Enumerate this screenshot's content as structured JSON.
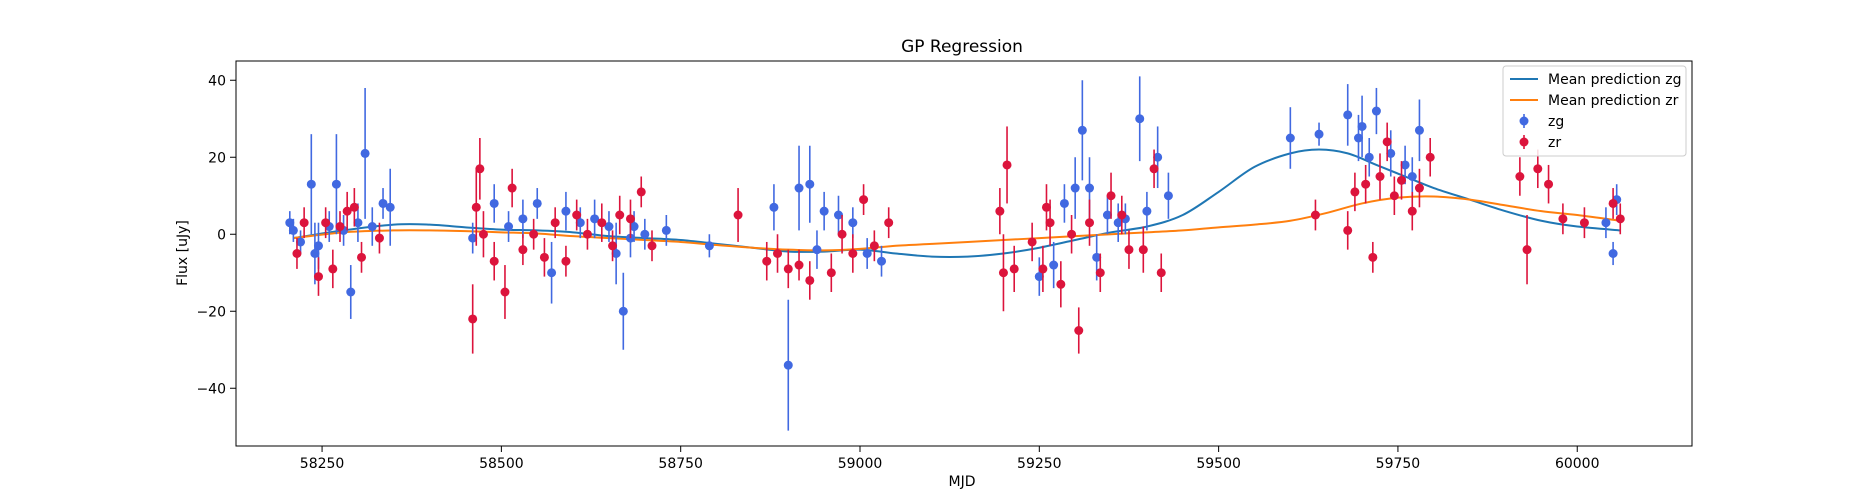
{
  "chart_data": {
    "type": "scatter",
    "title": "GP Regression",
    "xlabel": "MJD",
    "ylabel": "Flux [uJy]",
    "xlim": [
      58130,
      60160
    ],
    "ylim": [
      -55,
      45
    ],
    "xticks": [
      58250,
      58500,
      58750,
      59000,
      59250,
      59500,
      59750,
      60000
    ],
    "yticks": [
      -40,
      -20,
      0,
      20,
      40
    ],
    "grid": false,
    "legend_position": "top-right",
    "legend": [
      {
        "label": "Mean prediction zg",
        "kind": "line",
        "color": "#1f77b4"
      },
      {
        "label": "Mean prediction zr",
        "kind": "line",
        "color": "#ff7f0e"
      },
      {
        "label": "zg",
        "kind": "errorbar",
        "color": "#4169e1"
      },
      {
        "label": "zr",
        "kind": "errorbar",
        "color": "#dc143c"
      }
    ],
    "lines": [
      {
        "name": "Mean prediction zg",
        "color": "#1f77b4",
        "x": [
          58210,
          58280,
          58350,
          58400,
          58450,
          58500,
          58550,
          58600,
          58650,
          58700,
          58750,
          58800,
          58850,
          58900,
          58950,
          59000,
          59050,
          59100,
          59150,
          59200,
          59250,
          59300,
          59350,
          59400,
          59450,
          59500,
          59550,
          59600,
          59640,
          59680,
          59720,
          59760,
          59800,
          59850,
          59900,
          59950,
          60000,
          60060
        ],
        "y": [
          -1,
          1,
          2.5,
          2.5,
          1.8,
          1.2,
          1,
          0.5,
          -0.5,
          -1,
          -1.5,
          -2.5,
          -3.5,
          -4.5,
          -4.5,
          -4,
          -5,
          -5.8,
          -5.8,
          -5,
          -3.5,
          -1.5,
          0.5,
          2,
          5,
          11,
          17.5,
          21,
          22,
          21,
          18,
          15,
          12,
          9,
          6,
          3.5,
          2,
          1
        ]
      },
      {
        "name": "Mean prediction zr",
        "color": "#ff7f0e",
        "x": [
          58210,
          58280,
          58350,
          58400,
          58450,
          58500,
          58550,
          58600,
          58650,
          58700,
          58750,
          58800,
          58850,
          58900,
          58950,
          59000,
          59050,
          59100,
          59150,
          59200,
          59250,
          59300,
          59350,
          59400,
          59450,
          59500,
          59550,
          59600,
          59650,
          59700,
          59750,
          59800,
          59850,
          59900,
          59950,
          60000,
          60060
        ],
        "y": [
          -1,
          0.5,
          1,
          1,
          0.8,
          0.5,
          0.2,
          -0.5,
          -1,
          -1.5,
          -2,
          -2.8,
          -3.5,
          -4,
          -4.2,
          -3.8,
          -3,
          -2.5,
          -2,
          -1.5,
          -1,
          -0.5,
          0,
          0.5,
          1,
          1.8,
          2.5,
          3.5,
          5.5,
          8,
          9.5,
          9.8,
          9,
          7.5,
          6,
          5,
          3.5
        ]
      }
    ],
    "series": [
      {
        "name": "zg",
        "color": "#4169e1",
        "x": [
          58205,
          58210,
          58220,
          58235,
          58240,
          58245,
          58260,
          58270,
          58280,
          58290,
          58300,
          58310,
          58320,
          58335,
          58345,
          58460,
          58490,
          58510,
          58530,
          58550,
          58570,
          58590,
          58610,
          58630,
          58650,
          58660,
          58670,
          58680,
          58685,
          58700,
          58730,
          58790,
          58880,
          58900,
          58915,
          58930,
          58940,
          58950,
          58970,
          58990,
          59010,
          59030,
          59250,
          59270,
          59285,
          59300,
          59310,
          59320,
          59330,
          59345,
          59360,
          59370,
          59390,
          59400,
          59415,
          59430,
          59600,
          59640,
          59680,
          59695,
          59700,
          59710,
          59720,
          59740,
          59760,
          59770,
          59780,
          60040,
          60050,
          60055
        ],
        "y": [
          3,
          1,
          -2,
          13,
          -5,
          -3,
          2,
          13,
          1,
          -15,
          3,
          21,
          2,
          8,
          7,
          -1,
          8,
          2,
          4,
          8,
          -10,
          6,
          3,
          4,
          2,
          -5,
          -20,
          -1,
          2,
          0,
          1,
          -3,
          7,
          -34,
          12,
          13,
          -4,
          6,
          5,
          3,
          -5,
          -7,
          -11,
          -8,
          8,
          12,
          27,
          12,
          -6,
          5,
          3,
          4,
          30,
          6,
          20,
          10,
          25,
          26,
          31,
          25,
          28,
          20,
          32,
          21,
          18,
          15,
          27,
          3,
          -5,
          9
        ],
        "yerr": [
          3,
          3,
          3,
          13,
          8,
          6,
          4,
          13,
          4,
          7,
          5,
          17,
          5,
          4,
          10,
          4,
          5,
          4,
          5,
          4,
          8,
          5,
          4,
          5,
          4,
          8,
          10,
          5,
          4,
          4,
          4,
          3,
          6,
          17,
          11,
          10,
          5,
          5,
          5,
          4,
          4,
          4,
          5,
          6,
          5,
          8,
          13,
          8,
          6,
          5,
          5,
          4,
          11,
          5,
          8,
          6,
          8,
          3,
          8,
          6,
          8,
          5,
          6,
          6,
          5,
          5,
          8,
          4,
          3,
          4
        ]
      },
      {
        "name": "zr",
        "color": "#dc143c",
        "x": [
          58215,
          58225,
          58245,
          58255,
          58265,
          58275,
          58285,
          58295,
          58305,
          58330,
          58460,
          58465,
          58470,
          58475,
          58490,
          58505,
          58515,
          58530,
          58545,
          58560,
          58575,
          58590,
          58605,
          58620,
          58640,
          58655,
          58665,
          58680,
          58695,
          58710,
          58830,
          58870,
          58885,
          58900,
          58915,
          58930,
          58960,
          58975,
          58990,
          59005,
          59020,
          59040,
          59195,
          59200,
          59205,
          59215,
          59240,
          59255,
          59260,
          59265,
          59280,
          59295,
          59305,
          59320,
          59335,
          59350,
          59365,
          59375,
          59395,
          59410,
          59420,
          59635,
          59680,
          59690,
          59705,
          59715,
          59725,
          59735,
          59745,
          59755,
          59770,
          59780,
          59795,
          59920,
          59930,
          59945,
          59960,
          59980,
          60010,
          60050,
          60060
        ],
        "y": [
          -5,
          3,
          -11,
          3,
          -9,
          2,
          6,
          7,
          -6,
          -1,
          -22,
          7,
          17,
          0,
          -7,
          -15,
          12,
          -4,
          0,
          -6,
          3,
          -7,
          5,
          0,
          3,
          -3,
          5,
          4,
          11,
          -3,
          5,
          -7,
          -5,
          -9,
          -8,
          -12,
          -10,
          0,
          -5,
          9,
          -3,
          3,
          6,
          -10,
          18,
          -9,
          -2,
          -9,
          7,
          3,
          -13,
          0,
          -25,
          3,
          -10,
          10,
          5,
          -4,
          -4,
          17,
          -10,
          5,
          1,
          11,
          13,
          -6,
          15,
          24,
          10,
          14,
          6,
          12,
          20,
          15,
          -4,
          17,
          13,
          4,
          3,
          8,
          4
        ],
        "yerr": [
          4,
          4,
          5,
          4,
          5,
          4,
          5,
          5,
          4,
          4,
          9,
          10,
          8,
          6,
          5,
          7,
          5,
          4,
          4,
          5,
          4,
          4,
          4,
          4,
          5,
          4,
          5,
          5,
          4,
          4,
          7,
          5,
          5,
          5,
          4,
          5,
          5,
          5,
          5,
          4,
          4,
          4,
          6,
          10,
          10,
          6,
          5,
          6,
          6,
          6,
          6,
          5,
          6,
          6,
          5,
          6,
          5,
          5,
          6,
          5,
          5,
          4,
          5,
          5,
          5,
          4,
          6,
          5,
          5,
          5,
          5,
          5,
          5,
          5,
          9,
          5,
          5,
          4,
          4,
          4,
          4
        ]
      }
    ]
  }
}
